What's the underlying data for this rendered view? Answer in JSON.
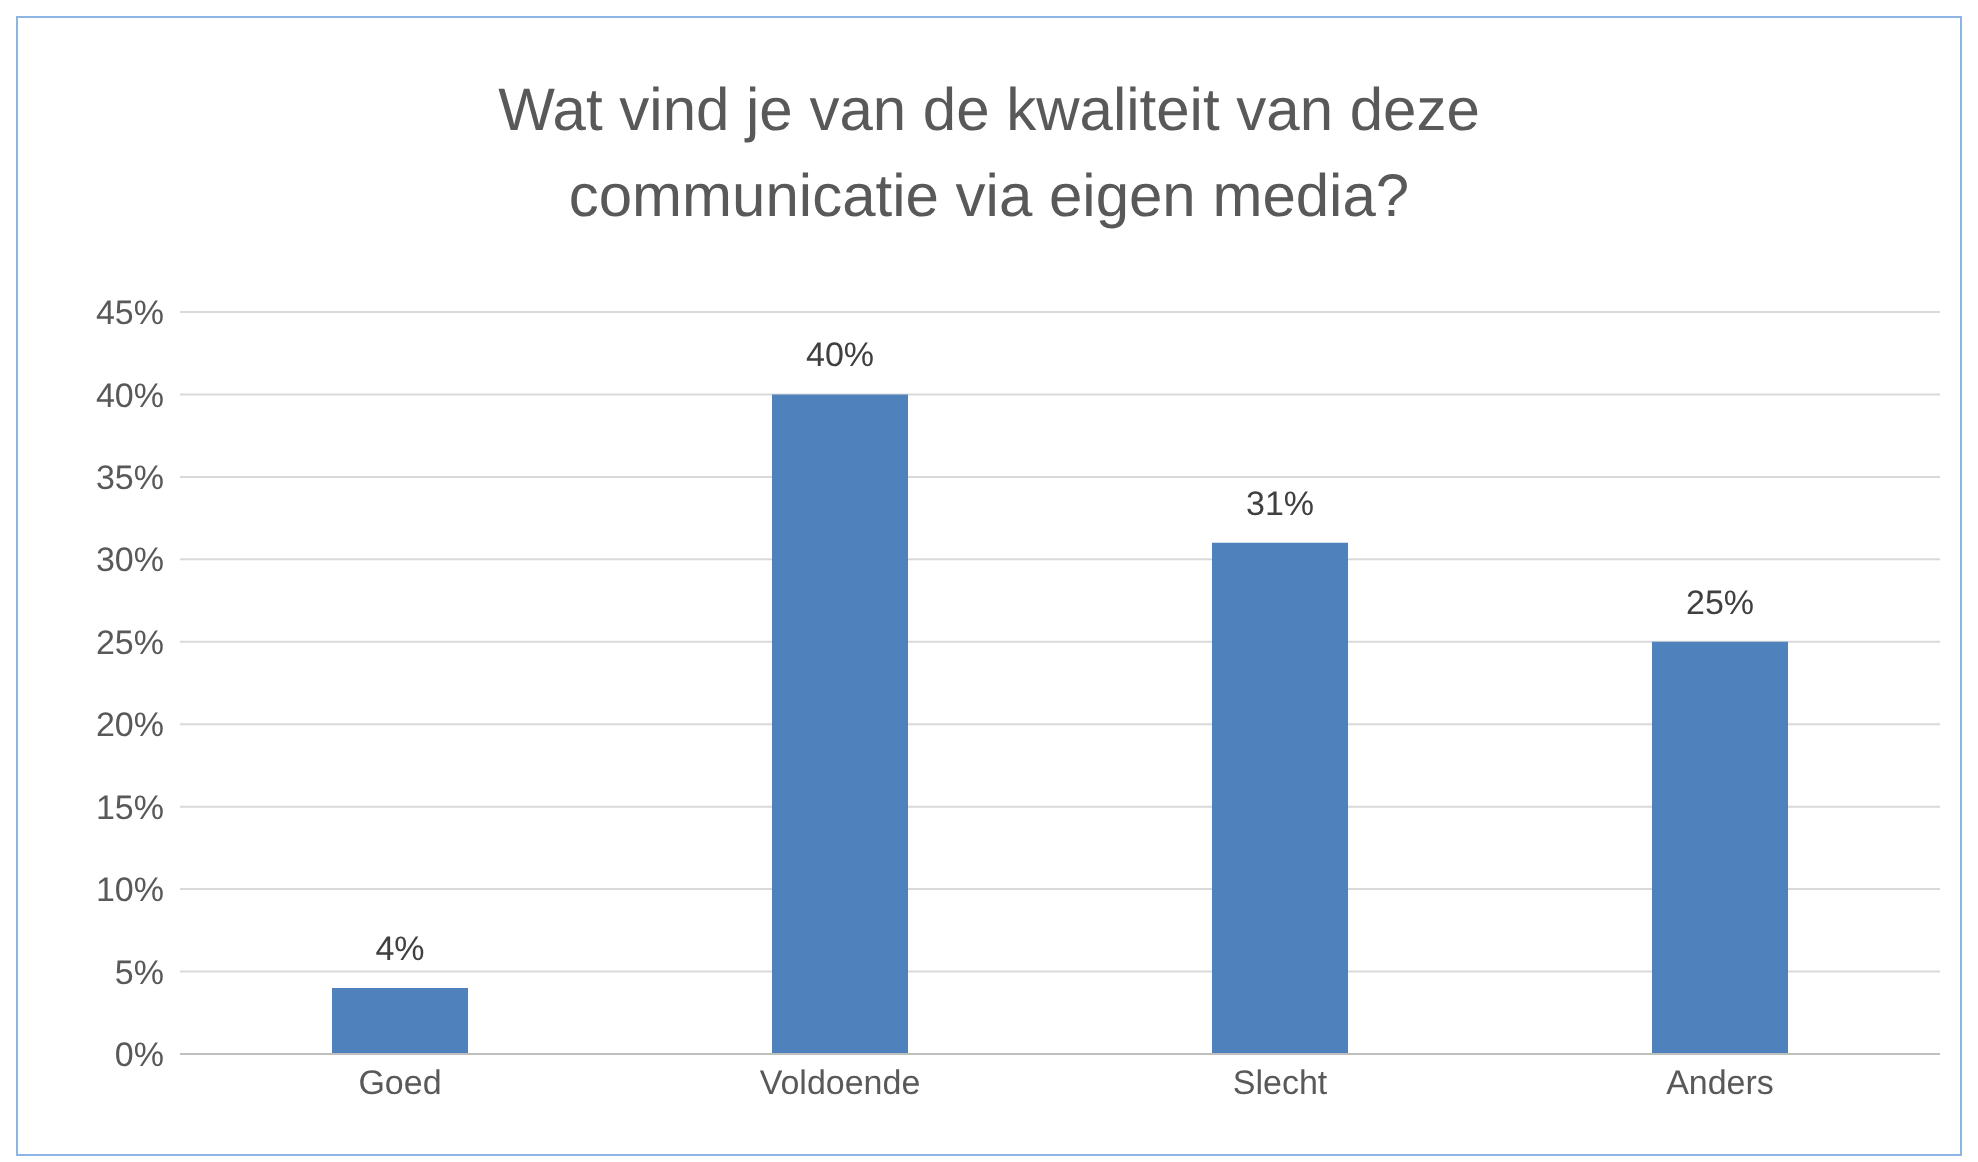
{
  "chart_data": {
    "type": "bar",
    "title": "Wat vind je van de kwaliteit van deze communicatie via eigen media?",
    "categories": [
      "Goed",
      "Voldoende",
      "Slecht",
      "Anders"
    ],
    "values": [
      4,
      40,
      31,
      25
    ],
    "value_labels": [
      "4%",
      "40%",
      "31%",
      "25%"
    ],
    "color": "#4f81bd",
    "ylim": [
      0,
      45
    ],
    "yticks": [
      {
        "value": 0,
        "label": "0%"
      },
      {
        "value": 5,
        "label": "5%"
      },
      {
        "value": 10,
        "label": "10%"
      },
      {
        "value": 15,
        "label": "15%"
      },
      {
        "value": 20,
        "label": "20%"
      },
      {
        "value": 25,
        "label": "25%"
      },
      {
        "value": 30,
        "label": "30%"
      },
      {
        "value": 35,
        "label": "35%"
      },
      {
        "value": 40,
        "label": "40%"
      },
      {
        "value": 45,
        "label": "45%"
      }
    ],
    "grid": "y"
  }
}
